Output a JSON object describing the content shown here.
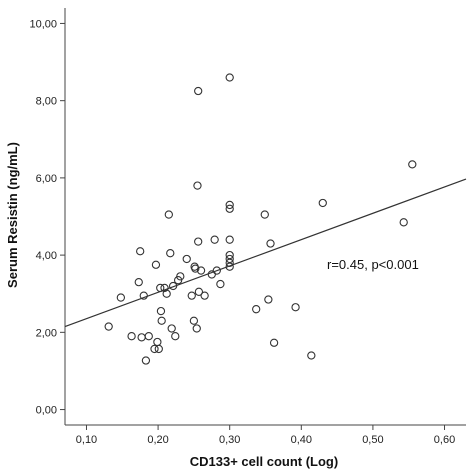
{
  "chart_data": {
    "type": "scatter",
    "title": "",
    "xlabel": "CD133+ cell count (Log)",
    "ylabel": "Serum Resistin (ng/mL)",
    "xlim": [
      0.07,
      0.63
    ],
    "ylim": [
      -0.4,
      10.4
    ],
    "x_ticks": [
      0.1,
      0.2,
      0.3,
      0.4,
      0.5,
      0.6
    ],
    "x_tick_labels": [
      "0,10",
      "0,20",
      "0,30",
      "0,40",
      "0,50",
      "0,60"
    ],
    "y_ticks": [
      0,
      2,
      4,
      6,
      8,
      10
    ],
    "y_tick_labels": [
      "0,00",
      "2,00",
      "4,00",
      "6,00",
      "8,00",
      "10,00"
    ],
    "grid": false,
    "annotation": "r=0.45, p<0.001",
    "colors": {
      "marker_stroke": "#333333",
      "line": "#333333",
      "axis": "#444444"
    },
    "fit_line": {
      "x": [
        0.07,
        0.63
      ],
      "y": [
        2.15,
        5.97
      ]
    },
    "points": [
      {
        "x": 0.131,
        "y": 2.15
      },
      {
        "x": 0.148,
        "y": 2.9
      },
      {
        "x": 0.163,
        "y": 1.9
      },
      {
        "x": 0.173,
        "y": 3.3
      },
      {
        "x": 0.175,
        "y": 4.1
      },
      {
        "x": 0.177,
        "y": 1.87
      },
      {
        "x": 0.18,
        "y": 2.95
      },
      {
        "x": 0.183,
        "y": 1.27
      },
      {
        "x": 0.187,
        "y": 1.9
      },
      {
        "x": 0.195,
        "y": 1.57
      },
      {
        "x": 0.197,
        "y": 3.75
      },
      {
        "x": 0.199,
        "y": 1.75
      },
      {
        "x": 0.201,
        "y": 1.57
      },
      {
        "x": 0.203,
        "y": 3.15
      },
      {
        "x": 0.204,
        "y": 2.55
      },
      {
        "x": 0.205,
        "y": 2.3
      },
      {
        "x": 0.209,
        "y": 3.15
      },
      {
        "x": 0.212,
        "y": 3.0
      },
      {
        "x": 0.215,
        "y": 5.05
      },
      {
        "x": 0.217,
        "y": 4.05
      },
      {
        "x": 0.219,
        "y": 2.1
      },
      {
        "x": 0.221,
        "y": 3.2
      },
      {
        "x": 0.224,
        "y": 1.9
      },
      {
        "x": 0.228,
        "y": 3.35
      },
      {
        "x": 0.231,
        "y": 3.45
      },
      {
        "x": 0.24,
        "y": 3.9
      },
      {
        "x": 0.247,
        "y": 2.95
      },
      {
        "x": 0.25,
        "y": 2.3
      },
      {
        "x": 0.251,
        "y": 3.7
      },
      {
        "x": 0.252,
        "y": 3.65
      },
      {
        "x": 0.254,
        "y": 2.1
      },
      {
        "x": 0.255,
        "y": 5.8
      },
      {
        "x": 0.256,
        "y": 8.25
      },
      {
        "x": 0.256,
        "y": 4.35
      },
      {
        "x": 0.257,
        "y": 3.05
      },
      {
        "x": 0.26,
        "y": 3.6
      },
      {
        "x": 0.265,
        "y": 2.95
      },
      {
        "x": 0.275,
        "y": 3.5
      },
      {
        "x": 0.279,
        "y": 4.4
      },
      {
        "x": 0.282,
        "y": 3.6
      },
      {
        "x": 0.287,
        "y": 3.25
      },
      {
        "x": 0.3,
        "y": 8.6
      },
      {
        "x": 0.3,
        "y": 5.3
      },
      {
        "x": 0.3,
        "y": 5.2
      },
      {
        "x": 0.3,
        "y": 4.4
      },
      {
        "x": 0.3,
        "y": 4.0
      },
      {
        "x": 0.3,
        "y": 3.9
      },
      {
        "x": 0.3,
        "y": 3.8
      },
      {
        "x": 0.3,
        "y": 3.7
      },
      {
        "x": 0.337,
        "y": 2.6
      },
      {
        "x": 0.349,
        "y": 5.05
      },
      {
        "x": 0.354,
        "y": 2.85
      },
      {
        "x": 0.357,
        "y": 4.3
      },
      {
        "x": 0.362,
        "y": 1.73
      },
      {
        "x": 0.392,
        "y": 2.65
      },
      {
        "x": 0.414,
        "y": 1.4
      },
      {
        "x": 0.43,
        "y": 5.35
      },
      {
        "x": 0.543,
        "y": 4.85
      },
      {
        "x": 0.555,
        "y": 6.35
      }
    ]
  }
}
